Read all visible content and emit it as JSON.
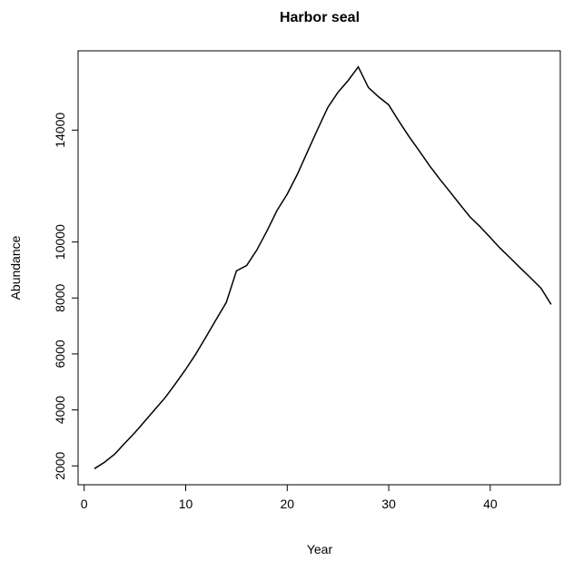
{
  "chart_data": {
    "type": "line",
    "title": "Harbor seal",
    "xlabel": "Year",
    "ylabel": "Abundance",
    "x": [
      1,
      2,
      3,
      4,
      5,
      6,
      7,
      8,
      9,
      10,
      11,
      12,
      13,
      14,
      15,
      16,
      17,
      18,
      19,
      20,
      21,
      22,
      23,
      24,
      25,
      26,
      27,
      28,
      29,
      30,
      31,
      32,
      33,
      34,
      35,
      36,
      37,
      38,
      39,
      40,
      41,
      42,
      43,
      44,
      45,
      46
    ],
    "values": [
      1900,
      2130,
      2420,
      2810,
      3190,
      3610,
      4030,
      4450,
      4940,
      5450,
      6000,
      6610,
      7230,
      7840,
      8970,
      9160,
      9710,
      10390,
      11130,
      11710,
      12420,
      13230,
      14030,
      14810,
      15350,
      15770,
      16260,
      15520,
      15190,
      14900,
      14320,
      13770,
      13260,
      12740,
      12260,
      11810,
      11350,
      10900,
      10550,
      10160,
      9770,
      9420,
      9060,
      8710,
      8350,
      7770
    ],
    "color": "#000000",
    "xlim": [
      -0.6,
      46.9
    ],
    "xticks": [
      0,
      10,
      20,
      30,
      40
    ],
    "ylim": [
      1326,
      16832
    ],
    "yticks": [
      2000,
      4000,
      6000,
      8000,
      10000,
      14000
    ]
  }
}
